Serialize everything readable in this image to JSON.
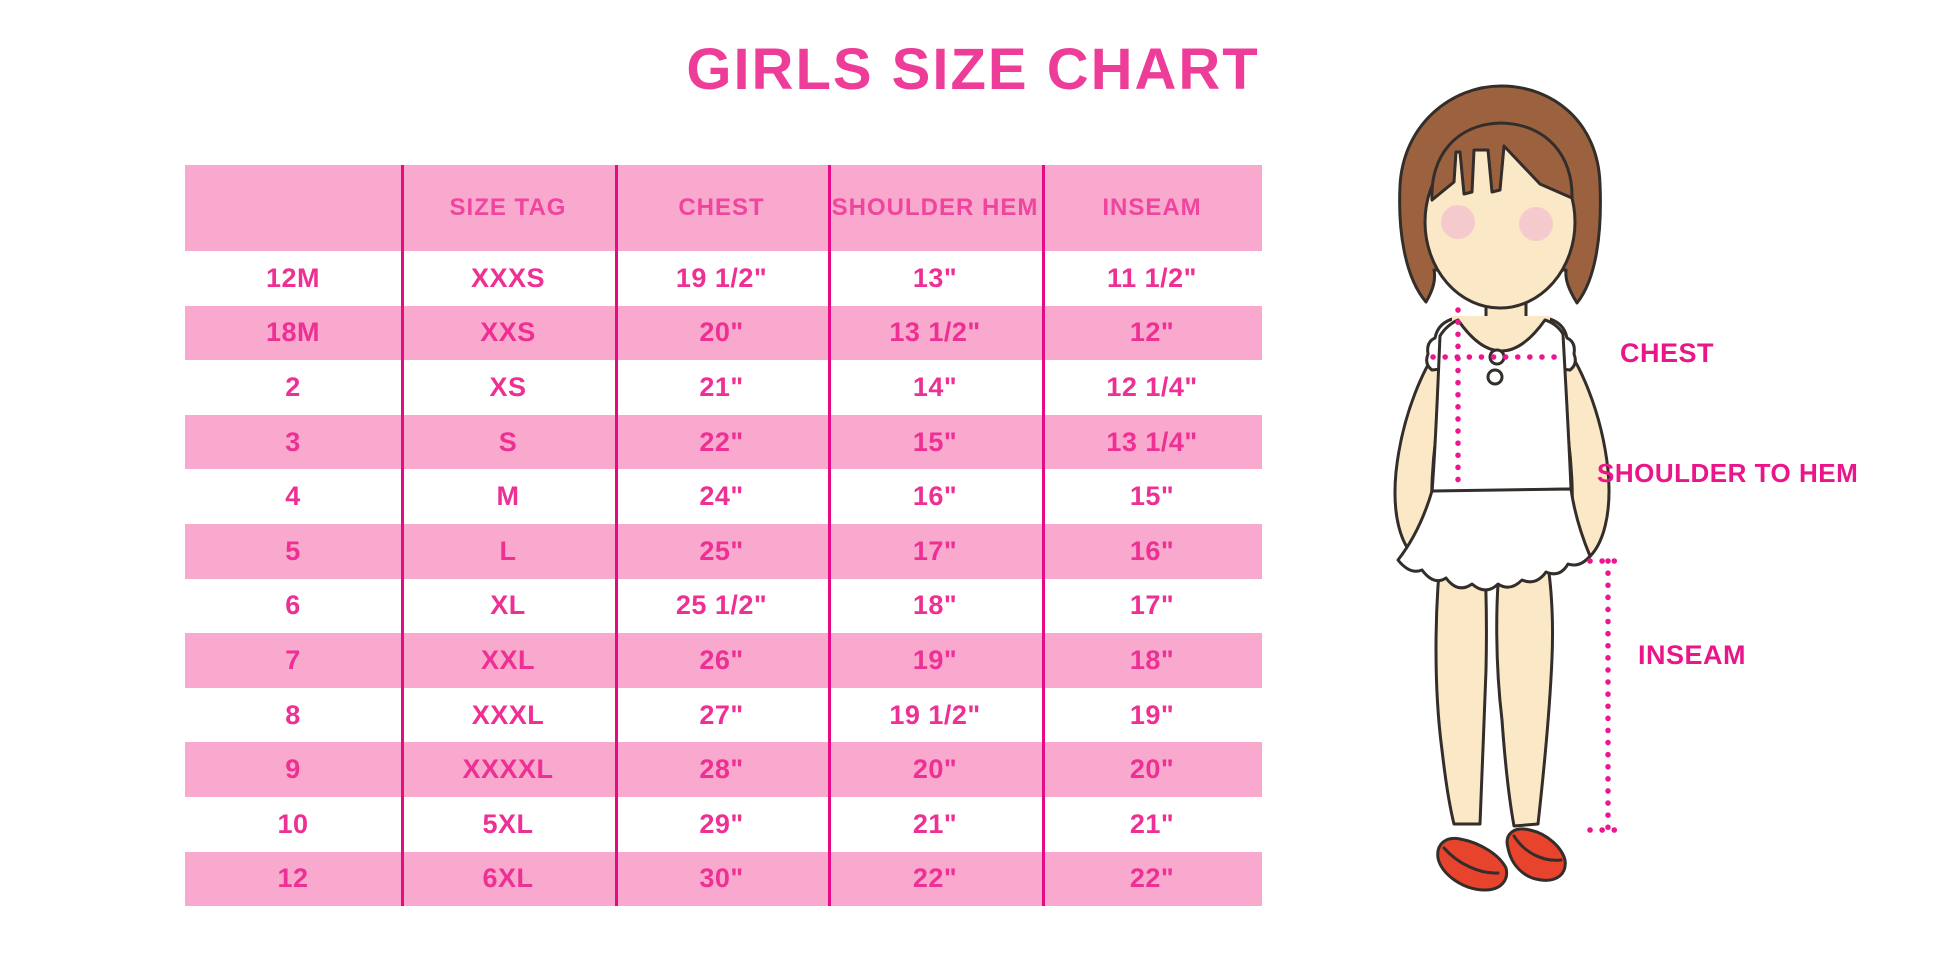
{
  "title": "GIRLS SIZE CHART",
  "table": {
    "headers": [
      "",
      "SIZE TAG",
      "CHEST",
      "SHOULDER HEM",
      "INSEAM"
    ],
    "rows": [
      [
        "12M",
        "XXXS",
        "19 1/2\"",
        "13\"",
        "11 1/2\""
      ],
      [
        "18M",
        "XXS",
        "20\"",
        "13 1/2\"",
        "12\""
      ],
      [
        "2",
        "XS",
        "21\"",
        "14\"",
        "12 1/4\""
      ],
      [
        "3",
        "S",
        "22\"",
        "15\"",
        "13 1/4\""
      ],
      [
        "4",
        "M",
        "24\"",
        "16\"",
        "15\""
      ],
      [
        "5",
        "L",
        "25\"",
        "17\"",
        "16\""
      ],
      [
        "6",
        "XL",
        "25 1/2\"",
        "18\"",
        "17\""
      ],
      [
        "7",
        "XXL",
        "26\"",
        "19\"",
        "18\""
      ],
      [
        "8",
        "XXXL",
        "27\"",
        "19 1/2\"",
        "19\""
      ],
      [
        "9",
        "XXXXL",
        "28\"",
        "20\"",
        "20\""
      ],
      [
        "10",
        "5XL",
        "29\"",
        "21\"",
        "21\""
      ],
      [
        "12",
        "6XL",
        "30\"",
        "22\"",
        "22\""
      ]
    ]
  },
  "diagram": {
    "chest_label": "CHEST",
    "shoulder_to_hem_label": "SHOULDER TO HEM",
    "inseam_label": "INSEAM"
  },
  "colors": {
    "row_pink": "#f9a8ce",
    "text_pink": "#ee2f93",
    "separator_magenta": "#e60a84",
    "label_magenta": "#ea1589",
    "title_pink": "#ee3d98",
    "hair_brown": "#9c6240",
    "skin": "#fbe8c7",
    "shoe_red": "#e8432c"
  },
  "chart_data": {
    "type": "table",
    "title": "GIRLS SIZE CHART",
    "columns": [
      "",
      "SIZE TAG",
      "CHEST",
      "SHOULDER HEM",
      "INSEAM"
    ],
    "rows": [
      [
        "12M",
        "XXXS",
        "19 1/2\"",
        "13\"",
        "11 1/2\""
      ],
      [
        "18M",
        "XXS",
        "20\"",
        "13 1/2\"",
        "12\""
      ],
      [
        "2",
        "XS",
        "21\"",
        "14\"",
        "12 1/4\""
      ],
      [
        "3",
        "S",
        "22\"",
        "15\"",
        "13 1/4\""
      ],
      [
        "4",
        "M",
        "24\"",
        "16\"",
        "15\""
      ],
      [
        "5",
        "L",
        "25\"",
        "17\"",
        "16\""
      ],
      [
        "6",
        "XL",
        "25 1/2\"",
        "18\"",
        "17\""
      ],
      [
        "7",
        "XXL",
        "26\"",
        "19\"",
        "18\""
      ],
      [
        "8",
        "XXXL",
        "27\"",
        "19 1/2\"",
        "19\""
      ],
      [
        "9",
        "XXXXL",
        "28\"",
        "20\"",
        "20\""
      ],
      [
        "10",
        "5XL",
        "29\"",
        "21\"",
        "21\""
      ],
      [
        "12",
        "6XL",
        "30\"",
        "22\"",
        "22\""
      ]
    ],
    "notes": "Stripe pattern: header and every second data row filled pink; measurements in inches"
  }
}
